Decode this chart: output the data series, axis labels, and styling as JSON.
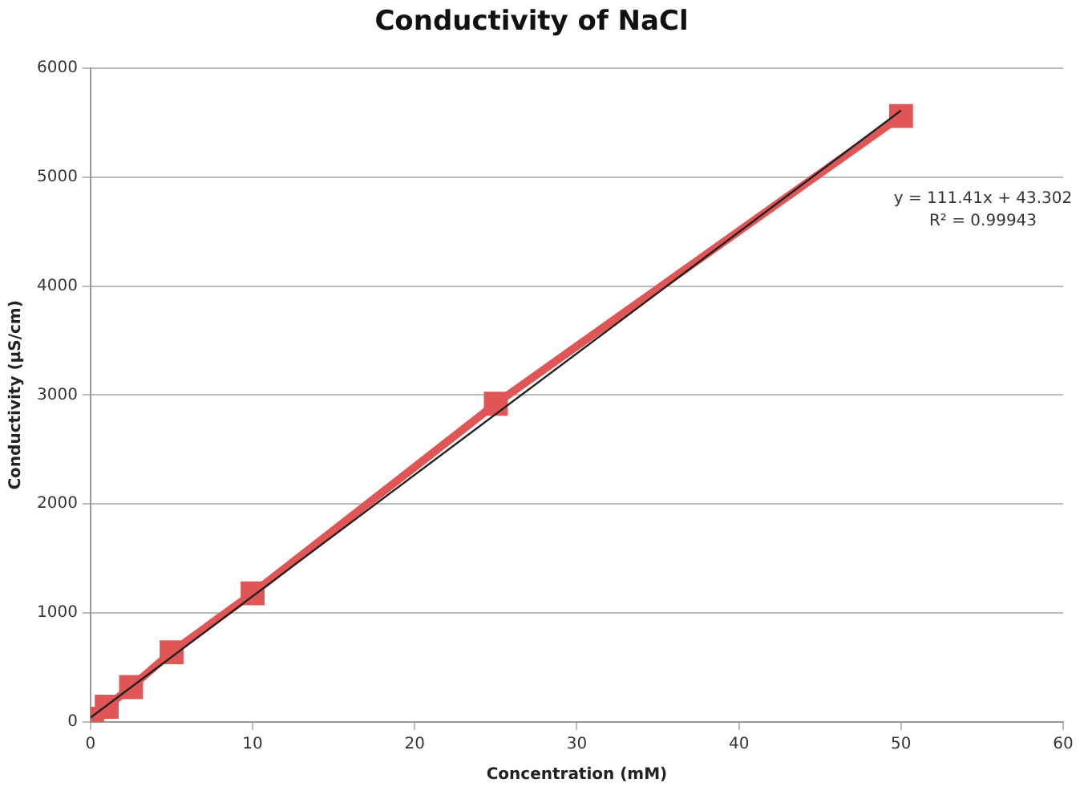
{
  "chart_data": {
    "type": "line",
    "title": "Conductivity of NaCl",
    "xlabel": "Concentration (mM)",
    "ylabel": "Conductivity (µS/cm)",
    "x": [
      0.1,
      1,
      2.5,
      5,
      10,
      25,
      50
    ],
    "series": [
      {
        "color": "#e05555",
        "values": [
          30,
          140,
          320,
          640,
          1180,
          2920,
          5560
        ],
        "marker": "square"
      },
      {
        "type": "line",
        "color": "#222222",
        "x": [
          0,
          50
        ],
        "values": [
          40,
          5610
        ],
        "marker": "none"
      }
    ],
    "xlim": [
      0,
      60
    ],
    "xticks": [
      0,
      10,
      20,
      30,
      40,
      50,
      60
    ],
    "ylim": [
      0,
      6000
    ],
    "yticks": [
      0,
      1000,
      2000,
      3000,
      4000,
      5000,
      6000
    ],
    "grid": "y",
    "legend": false,
    "annotations": [
      "y = 111.41x + 43.302",
      "R² = 0.99943"
    ]
  }
}
